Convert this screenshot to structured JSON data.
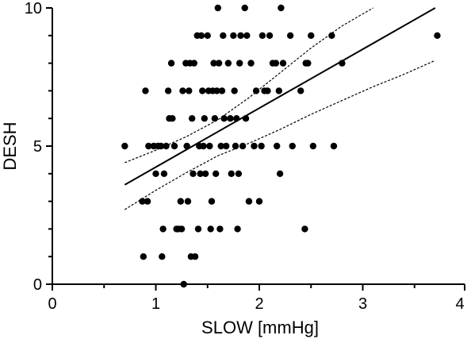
{
  "chart_data": {
    "type": "scatter",
    "title": "",
    "xlabel": "SLOW [mmHg]",
    "ylabel": "DESH",
    "xlim": [
      0,
      4
    ],
    "ylim": [
      0,
      10
    ],
    "x_ticks": [
      0,
      1,
      2,
      3,
      4
    ],
    "y_ticks": [
      0,
      5,
      10
    ],
    "grid": false,
    "legend": "none",
    "colors": {
      "points": "#000000",
      "fit_line": "#000000",
      "ci_lines": "#000000",
      "axes": "#000000"
    },
    "points": [
      {
        "x": 0.7,
        "y": 5
      },
      {
        "x": 0.87,
        "y": 3
      },
      {
        "x": 0.88,
        "y": 1
      },
      {
        "x": 0.9,
        "y": 7
      },
      {
        "x": 0.92,
        "y": 3
      },
      {
        "x": 0.93,
        "y": 5
      },
      {
        "x": 0.98,
        "y": 5
      },
      {
        "x": 1.0,
        "y": 4
      },
      {
        "x": 1.02,
        "y": 5
      },
      {
        "x": 1.05,
        "y": 5
      },
      {
        "x": 1.06,
        "y": 1
      },
      {
        "x": 1.07,
        "y": 2
      },
      {
        "x": 1.08,
        "y": 4
      },
      {
        "x": 1.1,
        "y": 5
      },
      {
        "x": 1.12,
        "y": 7
      },
      {
        "x": 1.13,
        "y": 6
      },
      {
        "x": 1.15,
        "y": 8
      },
      {
        "x": 1.16,
        "y": 6
      },
      {
        "x": 1.18,
        "y": 5
      },
      {
        "x": 1.2,
        "y": 2
      },
      {
        "x": 1.22,
        "y": 2
      },
      {
        "x": 1.24,
        "y": 3
      },
      {
        "x": 1.25,
        "y": 2
      },
      {
        "x": 1.26,
        "y": 7
      },
      {
        "x": 1.27,
        "y": 0
      },
      {
        "x": 1.29,
        "y": 8
      },
      {
        "x": 1.3,
        "y": 5
      },
      {
        "x": 1.31,
        "y": 3
      },
      {
        "x": 1.32,
        "y": 7
      },
      {
        "x": 1.33,
        "y": 8
      },
      {
        "x": 1.34,
        "y": 1
      },
      {
        "x": 1.35,
        "y": 6
      },
      {
        "x": 1.36,
        "y": 4
      },
      {
        "x": 1.37,
        "y": 8
      },
      {
        "x": 1.38,
        "y": 1
      },
      {
        "x": 1.4,
        "y": 9
      },
      {
        "x": 1.41,
        "y": 2
      },
      {
        "x": 1.42,
        "y": 5
      },
      {
        "x": 1.43,
        "y": 4
      },
      {
        "x": 1.44,
        "y": 9
      },
      {
        "x": 1.45,
        "y": 7
      },
      {
        "x": 1.46,
        "y": 5
      },
      {
        "x": 1.47,
        "y": 6
      },
      {
        "x": 1.48,
        "y": 4
      },
      {
        "x": 1.5,
        "y": 9
      },
      {
        "x": 1.51,
        "y": 7
      },
      {
        "x": 1.52,
        "y": 5
      },
      {
        "x": 1.53,
        "y": 2
      },
      {
        "x": 1.54,
        "y": 3
      },
      {
        "x": 1.55,
        "y": 7
      },
      {
        "x": 1.56,
        "y": 8
      },
      {
        "x": 1.57,
        "y": 6
      },
      {
        "x": 1.58,
        "y": 4
      },
      {
        "x": 1.59,
        "y": 7
      },
      {
        "x": 1.6,
        "y": 10
      },
      {
        "x": 1.61,
        "y": 8
      },
      {
        "x": 1.62,
        "y": 2
      },
      {
        "x": 1.63,
        "y": 5
      },
      {
        "x": 1.64,
        "y": 7
      },
      {
        "x": 1.65,
        "y": 9
      },
      {
        "x": 1.66,
        "y": 6
      },
      {
        "x": 1.68,
        "y": 5
      },
      {
        "x": 1.7,
        "y": 8
      },
      {
        "x": 1.72,
        "y": 6
      },
      {
        "x": 1.73,
        "y": 4
      },
      {
        "x": 1.75,
        "y": 9
      },
      {
        "x": 1.76,
        "y": 7
      },
      {
        "x": 1.77,
        "y": 5
      },
      {
        "x": 1.78,
        "y": 6
      },
      {
        "x": 1.79,
        "y": 2
      },
      {
        "x": 1.8,
        "y": 4
      },
      {
        "x": 1.81,
        "y": 8
      },
      {
        "x": 1.82,
        "y": 9
      },
      {
        "x": 1.84,
        "y": 5
      },
      {
        "x": 1.86,
        "y": 10
      },
      {
        "x": 1.87,
        "y": 6
      },
      {
        "x": 1.88,
        "y": 9
      },
      {
        "x": 1.9,
        "y": 3
      },
      {
        "x": 1.92,
        "y": 8
      },
      {
        "x": 1.95,
        "y": 5
      },
      {
        "x": 1.97,
        "y": 7
      },
      {
        "x": 2.0,
        "y": 3
      },
      {
        "x": 2.02,
        "y": 5
      },
      {
        "x": 2.03,
        "y": 9
      },
      {
        "x": 2.05,
        "y": 7
      },
      {
        "x": 2.08,
        "y": 7
      },
      {
        "x": 2.1,
        "y": 9
      },
      {
        "x": 2.13,
        "y": 8
      },
      {
        "x": 2.16,
        "y": 8
      },
      {
        "x": 2.17,
        "y": 5
      },
      {
        "x": 2.19,
        "y": 7
      },
      {
        "x": 2.2,
        "y": 4
      },
      {
        "x": 2.21,
        "y": 10
      },
      {
        "x": 2.23,
        "y": 8
      },
      {
        "x": 2.3,
        "y": 9
      },
      {
        "x": 2.32,
        "y": 5
      },
      {
        "x": 2.4,
        "y": 7
      },
      {
        "x": 2.44,
        "y": 2
      },
      {
        "x": 2.45,
        "y": 8
      },
      {
        "x": 2.47,
        "y": 8
      },
      {
        "x": 2.5,
        "y": 9
      },
      {
        "x": 2.52,
        "y": 5
      },
      {
        "x": 2.7,
        "y": 9
      },
      {
        "x": 2.72,
        "y": 5
      },
      {
        "x": 2.8,
        "y": 8
      },
      {
        "x": 3.72,
        "y": 9
      }
    ],
    "fit_line": {
      "x1": 0.7,
      "y1": 3.6,
      "x2": 3.7,
      "y2": 10.0
    },
    "ci_upper": [
      {
        "x": 0.7,
        "y": 4.4
      },
      {
        "x": 1.0,
        "y": 4.85
      },
      {
        "x": 1.3,
        "y": 5.35
      },
      {
        "x": 1.6,
        "y": 5.95
      },
      {
        "x": 1.9,
        "y": 6.75
      },
      {
        "x": 2.2,
        "y": 7.65
      },
      {
        "x": 2.5,
        "y": 8.55
      },
      {
        "x": 2.8,
        "y": 9.35
      },
      {
        "x": 3.1,
        "y": 10.0
      }
    ],
    "ci_lower": [
      {
        "x": 0.7,
        "y": 2.7
      },
      {
        "x": 1.0,
        "y": 3.4
      },
      {
        "x": 1.3,
        "y": 4.05
      },
      {
        "x": 1.6,
        "y": 4.65
      },
      {
        "x": 1.9,
        "y": 5.1
      },
      {
        "x": 2.2,
        "y": 5.6
      },
      {
        "x": 2.5,
        "y": 6.15
      },
      {
        "x": 2.8,
        "y": 6.65
      },
      {
        "x": 3.1,
        "y": 7.15
      },
      {
        "x": 3.4,
        "y": 7.6
      },
      {
        "x": 3.7,
        "y": 8.1
      }
    ]
  }
}
